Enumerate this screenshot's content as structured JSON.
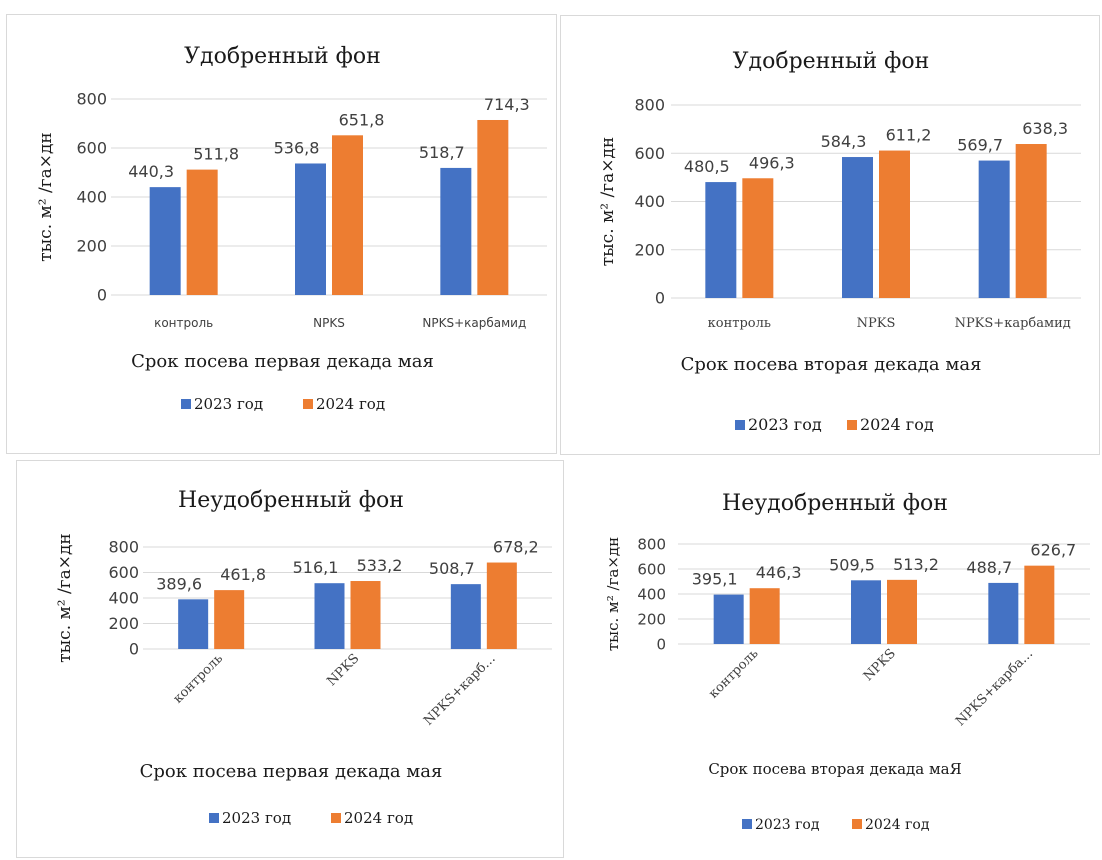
{
  "colors": {
    "series_2023": "#4472c4",
    "series_2024": "#ed7d31"
  },
  "chart_data": [
    {
      "type": "bar",
      "title": "Удобренный фон",
      "xlabel": "Срок посева первая декада мая",
      "ylabel": "тыс. м² /га×дн",
      "categories": [
        "контроль",
        "NPKS",
        "NPKS+карбамид"
      ],
      "series": [
        {
          "name": "2023 год",
          "values": [
            440.3,
            536.8,
            518.7
          ],
          "labels": [
            "440,3",
            "536,8",
            "518,7"
          ]
        },
        {
          "name": "2024 год",
          "values": [
            511.8,
            651.8,
            714.3
          ],
          "labels": [
            "511,8",
            "651,8",
            "714,3"
          ]
        }
      ],
      "yticks": [
        "0",
        "200",
        "400",
        "600",
        "800"
      ],
      "ylim": [
        0,
        800
      ],
      "grid": true,
      "legend": "bottom"
    },
    {
      "type": "bar",
      "title": "Удобренный фон",
      "xlabel": "Срок посева вторая декада мая",
      "ylabel": "тыс. м² /га×дн",
      "categories": [
        "контроль",
        "NPKS",
        "NPKS+карбамид"
      ],
      "series": [
        {
          "name": "2023 год",
          "values": [
            480.5,
            584.3,
            569.7
          ],
          "labels": [
            "480,5",
            "584,3",
            "569,7"
          ]
        },
        {
          "name": "2024 год",
          "values": [
            496.3,
            611.2,
            638.3
          ],
          "labels": [
            "496,3",
            "611,2",
            "638,3"
          ]
        }
      ],
      "yticks": [
        "0",
        "200",
        "400",
        "600",
        "800"
      ],
      "ylim": [
        0,
        800
      ],
      "grid": true,
      "legend": "bottom"
    },
    {
      "type": "bar",
      "title": "Неудобренный фон",
      "xlabel": "Срок посева первая декада мая",
      "ylabel": "тыс. м² /га×дн",
      "categories": [
        "контроль",
        "NPKS",
        "NPKS+карб…"
      ],
      "series": [
        {
          "name": "2023 год",
          "values": [
            389.6,
            516.1,
            508.7
          ],
          "labels": [
            "389,6",
            "516,1",
            "508,7"
          ]
        },
        {
          "name": "2024 год",
          "values": [
            461.8,
            533.2,
            678.2
          ],
          "labels": [
            "461,8",
            "533,2",
            "678,2"
          ]
        }
      ],
      "yticks": [
        "0",
        "200",
        "400",
        "600",
        "800"
      ],
      "ylim": [
        0,
        800
      ],
      "grid": true,
      "legend": "bottom"
    },
    {
      "type": "bar",
      "title": "Неудобренный фон",
      "xlabel": "Срок посева вторая декада маЯ",
      "ylabel": "тыс. м² /га×дн",
      "categories": [
        "контроль",
        "NPKS",
        "NPKS+карба…"
      ],
      "series": [
        {
          "name": "2023 год",
          "values": [
            395.1,
            509.5,
            488.7
          ],
          "labels": [
            "395,1",
            "509,5",
            "488,7"
          ]
        },
        {
          "name": "2024 год",
          "values": [
            446.3,
            513.2,
            626.7
          ],
          "labels": [
            "446,3",
            "513,2",
            "626,7"
          ]
        }
      ],
      "yticks": [
        "0",
        "200",
        "400",
        "600",
        "800"
      ],
      "ylim": [
        0,
        800
      ],
      "grid": true,
      "legend": "bottom"
    }
  ]
}
